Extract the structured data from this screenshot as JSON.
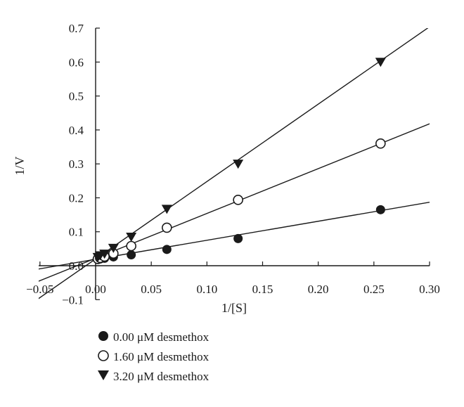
{
  "chart_data": {
    "type": "scatter",
    "xlabel": "1/[S]",
    "ylabel": "1/V",
    "xlim": [
      -0.05,
      0.3
    ],
    "ylim": [
      -0.1,
      0.7
    ],
    "x_ticks": [
      "−0.05",
      "0.00",
      "0.05",
      "0.10",
      "0.15",
      "0.20",
      "0.25",
      "0.30"
    ],
    "y_ticks": [
      "−0.1",
      "0.0",
      "0.1",
      "0.2",
      "0.3",
      "0.4",
      "0.5",
      "0.6",
      "0.7"
    ],
    "grid": false,
    "legend_position": "bottom-left",
    "colors": {
      "ink": "#1a1a1a",
      "background": "#ffffff"
    },
    "series": [
      {
        "name": "0.00 μM desmethox",
        "marker": "filled-circle",
        "x": [
          0.002,
          0.004,
          0.008,
          0.016,
          0.032,
          0.064,
          0.128,
          0.256
        ],
        "y": [
          0.018,
          0.02,
          0.022,
          0.026,
          0.032,
          0.048,
          0.08,
          0.165
        ],
        "fit": {
          "slope": 0.56,
          "intercept": 0.019
        }
      },
      {
        "name": "1.60 μM desmethox",
        "marker": "open-circle",
        "x": [
          0.002,
          0.004,
          0.008,
          0.016,
          0.032,
          0.064,
          0.128,
          0.256
        ],
        "y": [
          0.02,
          0.023,
          0.027,
          0.036,
          0.058,
          0.112,
          0.194,
          0.36
        ],
        "fit": {
          "slope": 1.32,
          "intercept": 0.022
        }
      },
      {
        "name": "3.20 μM desmethox",
        "marker": "filled-triangle-down",
        "x": [
          0.002,
          0.004,
          0.008,
          0.016,
          0.032,
          0.064,
          0.128,
          0.256
        ],
        "y": [
          0.025,
          0.03,
          0.035,
          0.052,
          0.085,
          0.167,
          0.3,
          0.6
        ],
        "fit": {
          "slope": 2.28,
          "intercept": 0.02
        }
      }
    ]
  }
}
